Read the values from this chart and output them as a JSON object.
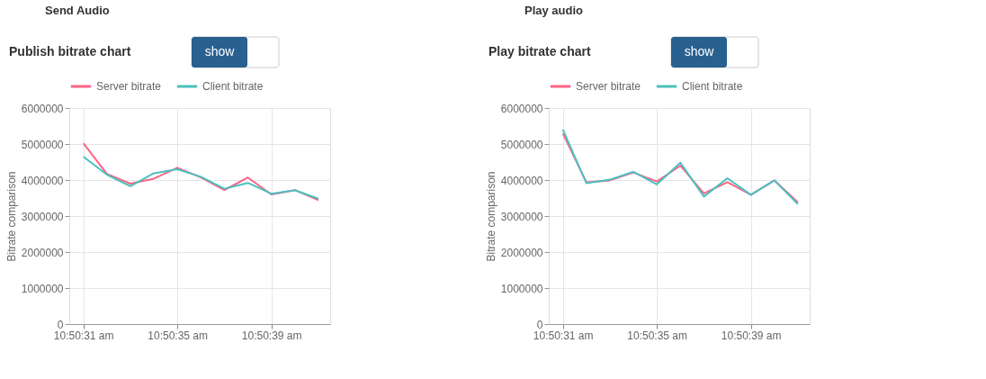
{
  "chart_data": [
    {
      "type": "line",
      "title": "Publish bitrate chart",
      "annotations": [
        "Send Audio",
        "show"
      ],
      "ylabel": "Bitrate comparison",
      "categories": [
        "10:50:31 am",
        null,
        null,
        null,
        "10:50:35 am",
        null,
        null,
        null,
        "10:50:39 am",
        null,
        null
      ],
      "series": [
        {
          "name": "Server bitrate",
          "color": "#ff6384",
          "values": [
            5020000,
            4170000,
            3900000,
            4040000,
            4340000,
            4070000,
            3720000,
            4070000,
            3600000,
            3720000,
            3440000
          ]
        },
        {
          "name": "Client bitrate",
          "color": "#4bc0c0",
          "values": [
            4650000,
            4150000,
            3830000,
            4190000,
            4300000,
            4090000,
            3760000,
            3920000,
            3620000,
            3720000,
            3480000
          ]
        }
      ],
      "ylim": [
        0,
        6000000
      ],
      "yticks": [
        0,
        1000000,
        2000000,
        3000000,
        4000000,
        5000000,
        6000000
      ],
      "grid": true,
      "legend": "top",
      "marker": "none",
      "line_style": "solid"
    },
    {
      "type": "line",
      "title": "Play bitrate chart",
      "annotations": [
        "Play audio",
        "show"
      ],
      "ylabel": "Bitrate comparison",
      "categories": [
        "10:50:31 am",
        null,
        null,
        null,
        "10:50:35 am",
        null,
        null,
        null,
        "10:50:39 am",
        null,
        null
      ],
      "series": [
        {
          "name": "Server bitrate",
          "color": "#ff6384",
          "values": [
            5290000,
            3940000,
            3990000,
            4210000,
            3960000,
            4400000,
            3630000,
            3940000,
            3590000,
            3990000,
            3380000
          ]
        },
        {
          "name": "Client bitrate",
          "color": "#4bc0c0",
          "values": [
            5400000,
            3910000,
            4010000,
            4230000,
            3880000,
            4480000,
            3540000,
            4050000,
            3590000,
            3990000,
            3330000
          ]
        }
      ],
      "ylim": [
        0,
        6000000
      ],
      "yticks": [
        0,
        1000000,
        2000000,
        3000000,
        4000000,
        5000000,
        6000000
      ],
      "grid": true,
      "legend": "top",
      "marker": "none",
      "line_style": "solid"
    }
  ]
}
